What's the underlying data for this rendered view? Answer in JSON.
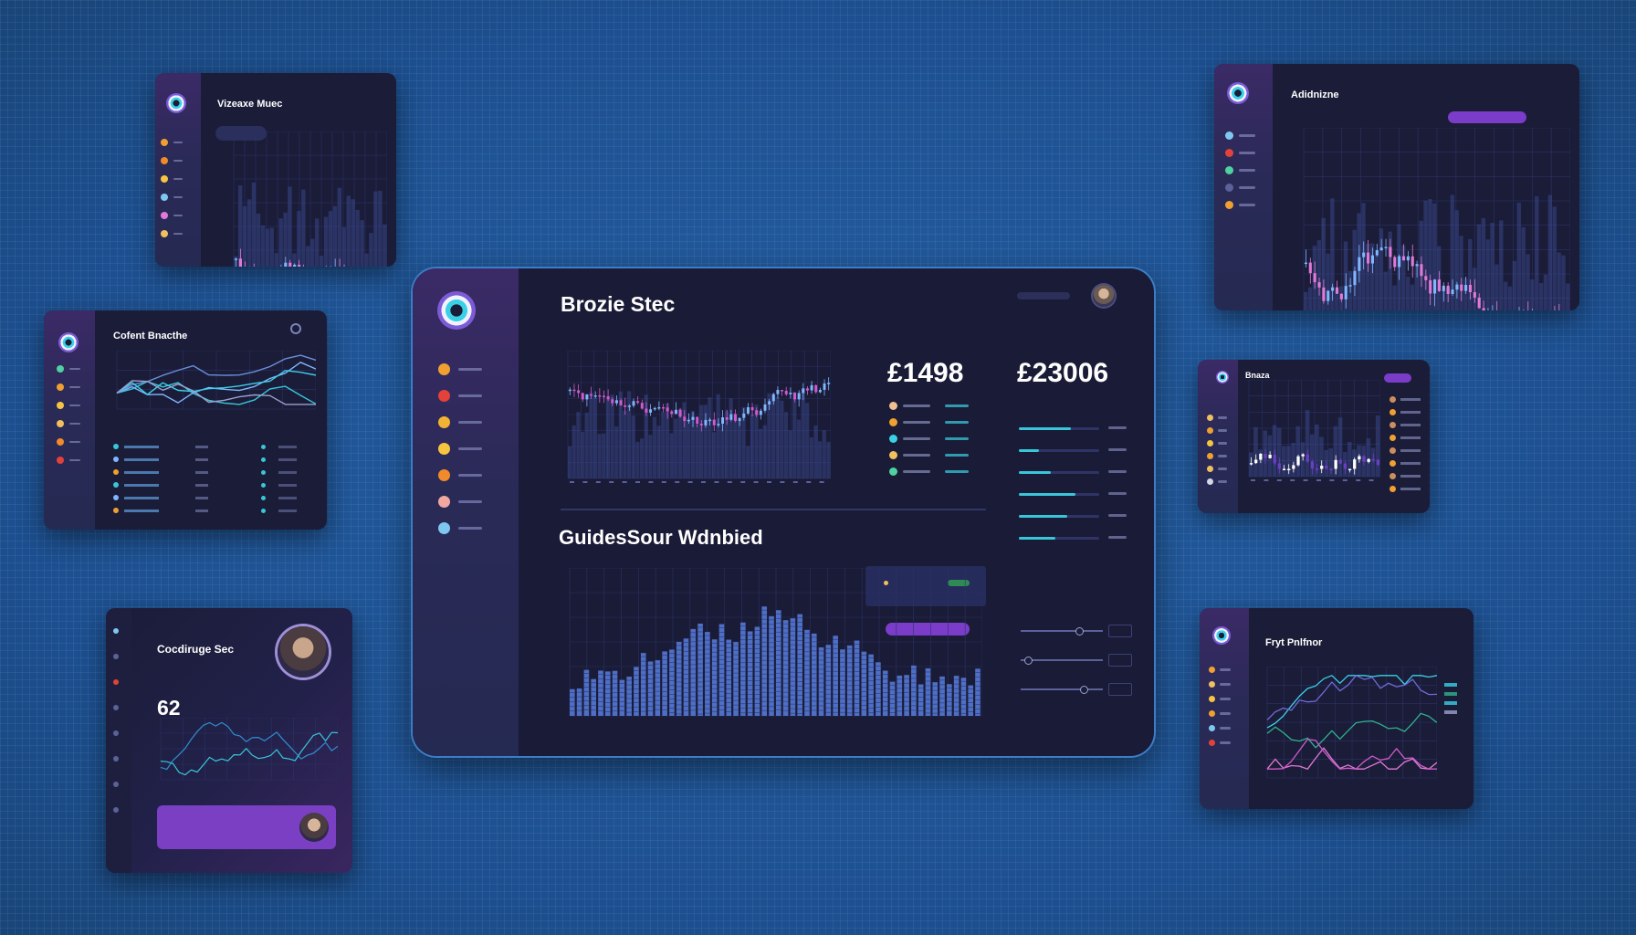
{
  "main": {
    "title": "Brozie Stec",
    "section_title": "GuidesSour Wdnbied",
    "stat1": {
      "value": "£1498"
    },
    "stat2": {
      "value": "£23006"
    },
    "brand_caption": "",
    "nav_colors": [
      "#f0a030",
      "#e2423a",
      "#f2b233",
      "#f5c542",
      "#f08a2a",
      "#f0a8a0",
      "#7ec8f0"
    ],
    "legend_colors": [
      "#f0c090",
      "#f0a030",
      "#3ad1e6",
      "#f0c060",
      "#4fd1a0"
    ],
    "progress": [
      0.65,
      0.25,
      0.4,
      0.7,
      0.6,
      0.45
    ],
    "sliders": [
      0.7,
      0.05,
      0.75
    ],
    "pill_color": "#7a3cc9"
  },
  "card_tl": {
    "title": "Vizeaxe Muec"
  },
  "card_ml": {
    "title": "Cofent Bnacthe"
  },
  "card_bl": {
    "title": "Cocdiruge Sec",
    "big_number": "62"
  },
  "card_tr": {
    "title": "Adidnizne"
  },
  "card_mr": {
    "title": "Bnaza"
  },
  "card_br": {
    "title": "Fryt Pnlfnor"
  },
  "colors": {
    "background": "#1f5596",
    "card": "#1b1c38",
    "sidebar": "#2a2a57",
    "accent_cyan": "#38c6d8",
    "accent_pink": "#d05acb",
    "accent_purple": "#7a3cc9",
    "bar_blue": "#4f6fc4"
  }
}
